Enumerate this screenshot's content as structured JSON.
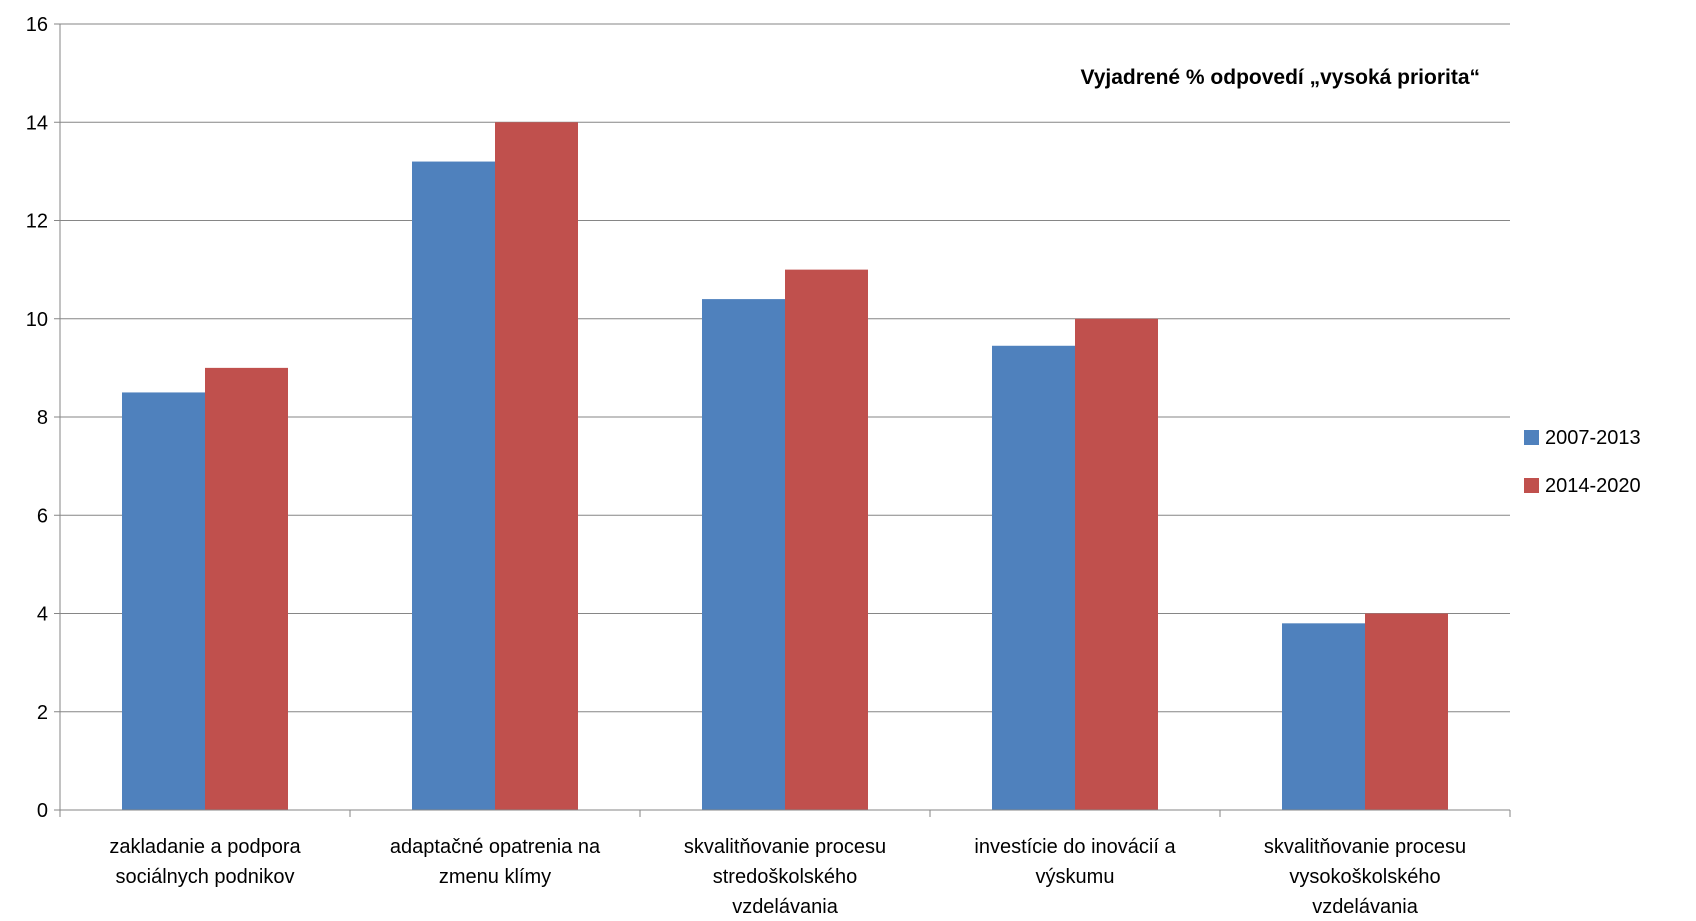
{
  "chart_data": {
    "type": "bar",
    "title": "Vyjadrené % odpovedí „vysoká priorita“",
    "categories": [
      [
        "zakladanie a podpora",
        "sociálnych podnikov"
      ],
      [
        "adaptačné opatrenia na",
        "zmenu klímy"
      ],
      [
        "skvalitňovanie procesu",
        "stredoškolského",
        "vzdelávania"
      ],
      [
        "investície do inovácií a",
        "výskumu"
      ],
      [
        "skvalitňovanie procesu",
        "vysokoškolského",
        "vzdelávania"
      ]
    ],
    "series": [
      {
        "name": "2007-2013",
        "color": "#4F81BD",
        "values": [
          8.5,
          13.2,
          10.4,
          9.45,
          3.8
        ]
      },
      {
        "name": "2014-2020",
        "color": "#C0504D",
        "values": [
          9,
          14,
          11,
          10,
          4
        ]
      }
    ],
    "ylim": [
      0,
      16
    ],
    "yticks": [
      0,
      2,
      4,
      6,
      8,
      10,
      12,
      14,
      16
    ],
    "grid": true,
    "legend_position": "right"
  }
}
